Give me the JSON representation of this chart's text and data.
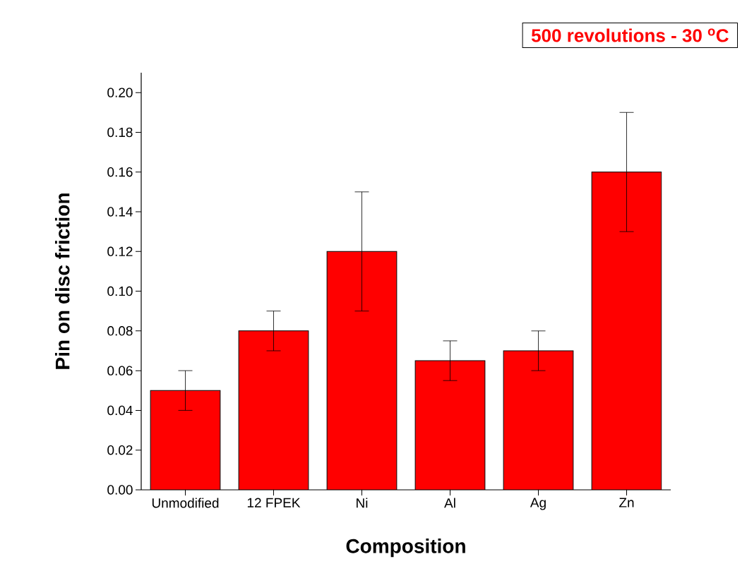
{
  "chart_data": {
    "type": "bar",
    "xlabel": "Composition",
    "ylabel": "Pin on disc friction",
    "categories": [
      "Unmodified",
      "12 FPEK",
      "Ni",
      "Al",
      "Ag",
      "Zn"
    ],
    "values": [
      0.05,
      0.08,
      0.12,
      0.065,
      0.07,
      0.16
    ],
    "errors": [
      0.01,
      0.01,
      0.03,
      0.01,
      0.01,
      0.03
    ],
    "color": "#ff0000",
    "ylim": [
      0,
      0.21
    ],
    "yticks": [
      {
        "value": 0,
        "label": "0.00"
      },
      {
        "value": 0.02,
        "label": "0.02"
      },
      {
        "value": 0.04,
        "label": "0.04"
      },
      {
        "value": 0.06,
        "label": "0.06"
      },
      {
        "value": 0.08,
        "label": "0.08"
      },
      {
        "value": 0.1,
        "label": "0.10"
      },
      {
        "value": 0.12,
        "label": "0.12"
      },
      {
        "value": 0.14,
        "label": "0.14"
      },
      {
        "value": 0.16,
        "label": "0.16"
      },
      {
        "value": 0.18,
        "label": "0.18"
      },
      {
        "value": 0.2,
        "label": "0.20"
      }
    ],
    "annotations": [
      "500 revolutions - 30 $^{o}$C"
    ],
    "grid": false
  }
}
